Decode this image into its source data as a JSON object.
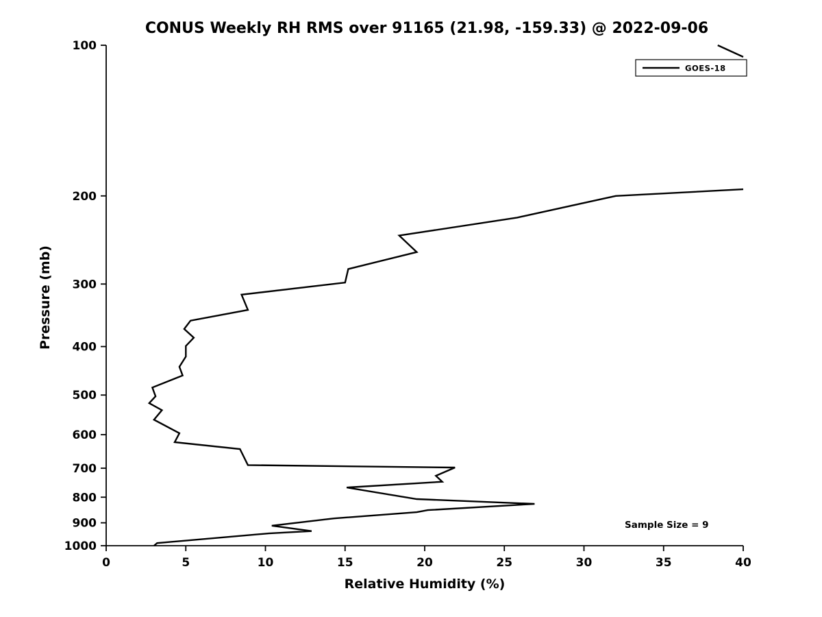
{
  "page": {
    "background": "#ffffff",
    "foreground": "#000000"
  },
  "legend": {
    "label": "GOES-18",
    "position": "upper-right"
  },
  "annotation": {
    "text": "Sample Size = 9"
  },
  "chart_data": {
    "type": "line",
    "title": "CONUS Weekly RH RMS over 91165 (21.98, -159.33) @ 2022-09-06",
    "xlabel": "Relative Humidity (%)",
    "ylabel": "Pressure (mb)",
    "xlim": [
      0,
      40
    ],
    "ylim_bottom": 1000,
    "ylim_top": 100,
    "yscale": "log",
    "grid": false,
    "x_ticks": [
      0,
      5,
      10,
      15,
      20,
      25,
      30,
      35,
      40
    ],
    "y_ticks": [
      100,
      200,
      300,
      400,
      500,
      600,
      700,
      800,
      900,
      1000
    ],
    "legend_position": "upper right",
    "series": [
      {
        "name": "GOES-18",
        "color": "#000000",
        "line_width": 2.4,
        "point_format": "[relative_humidity_percent, pressure_mb]",
        "segments": [
          [
            [
              38.4,
              100
            ],
            [
              40.0,
              105.5
            ]
          ],
          [
            [
              40.0,
              194
            ],
            [
              32.0,
              200
            ],
            [
              25.8,
              221
            ],
            [
              18.4,
              240
            ],
            [
              19.5,
              259
            ],
            [
              15.2,
              280
            ],
            [
              15.0,
              298
            ],
            [
              8.5,
              315
            ],
            [
              8.9,
              338
            ],
            [
              5.3,
              355
            ],
            [
              4.9,
              369
            ],
            [
              5.5,
              384
            ],
            [
              5.0,
              399
            ],
            [
              5.0,
              419
            ],
            [
              4.6,
              439
            ],
            [
              4.8,
              457
            ],
            [
              2.9,
              483
            ],
            [
              3.1,
              503
            ],
            [
              2.7,
              519
            ],
            [
              3.5,
              536
            ],
            [
              3.0,
              560
            ],
            [
              4.6,
              596
            ],
            [
              4.3,
              621
            ],
            [
              8.4,
              641
            ],
            [
              8.9,
              690
            ],
            [
              21.9,
              698
            ],
            [
              20.7,
              725
            ],
            [
              21.1,
              745
            ],
            [
              15.1,
              765
            ],
            [
              19.5,
              807
            ],
            [
              26.9,
              825
            ],
            [
              20.2,
              849
            ],
            [
              19.5,
              857
            ],
            [
              14.3,
              882
            ],
            [
              10.4,
              912
            ],
            [
              12.9,
              935
            ],
            [
              10.2,
              945
            ],
            [
              3.2,
              988
            ],
            [
              3.0,
              1000
            ]
          ]
        ]
      }
    ]
  }
}
